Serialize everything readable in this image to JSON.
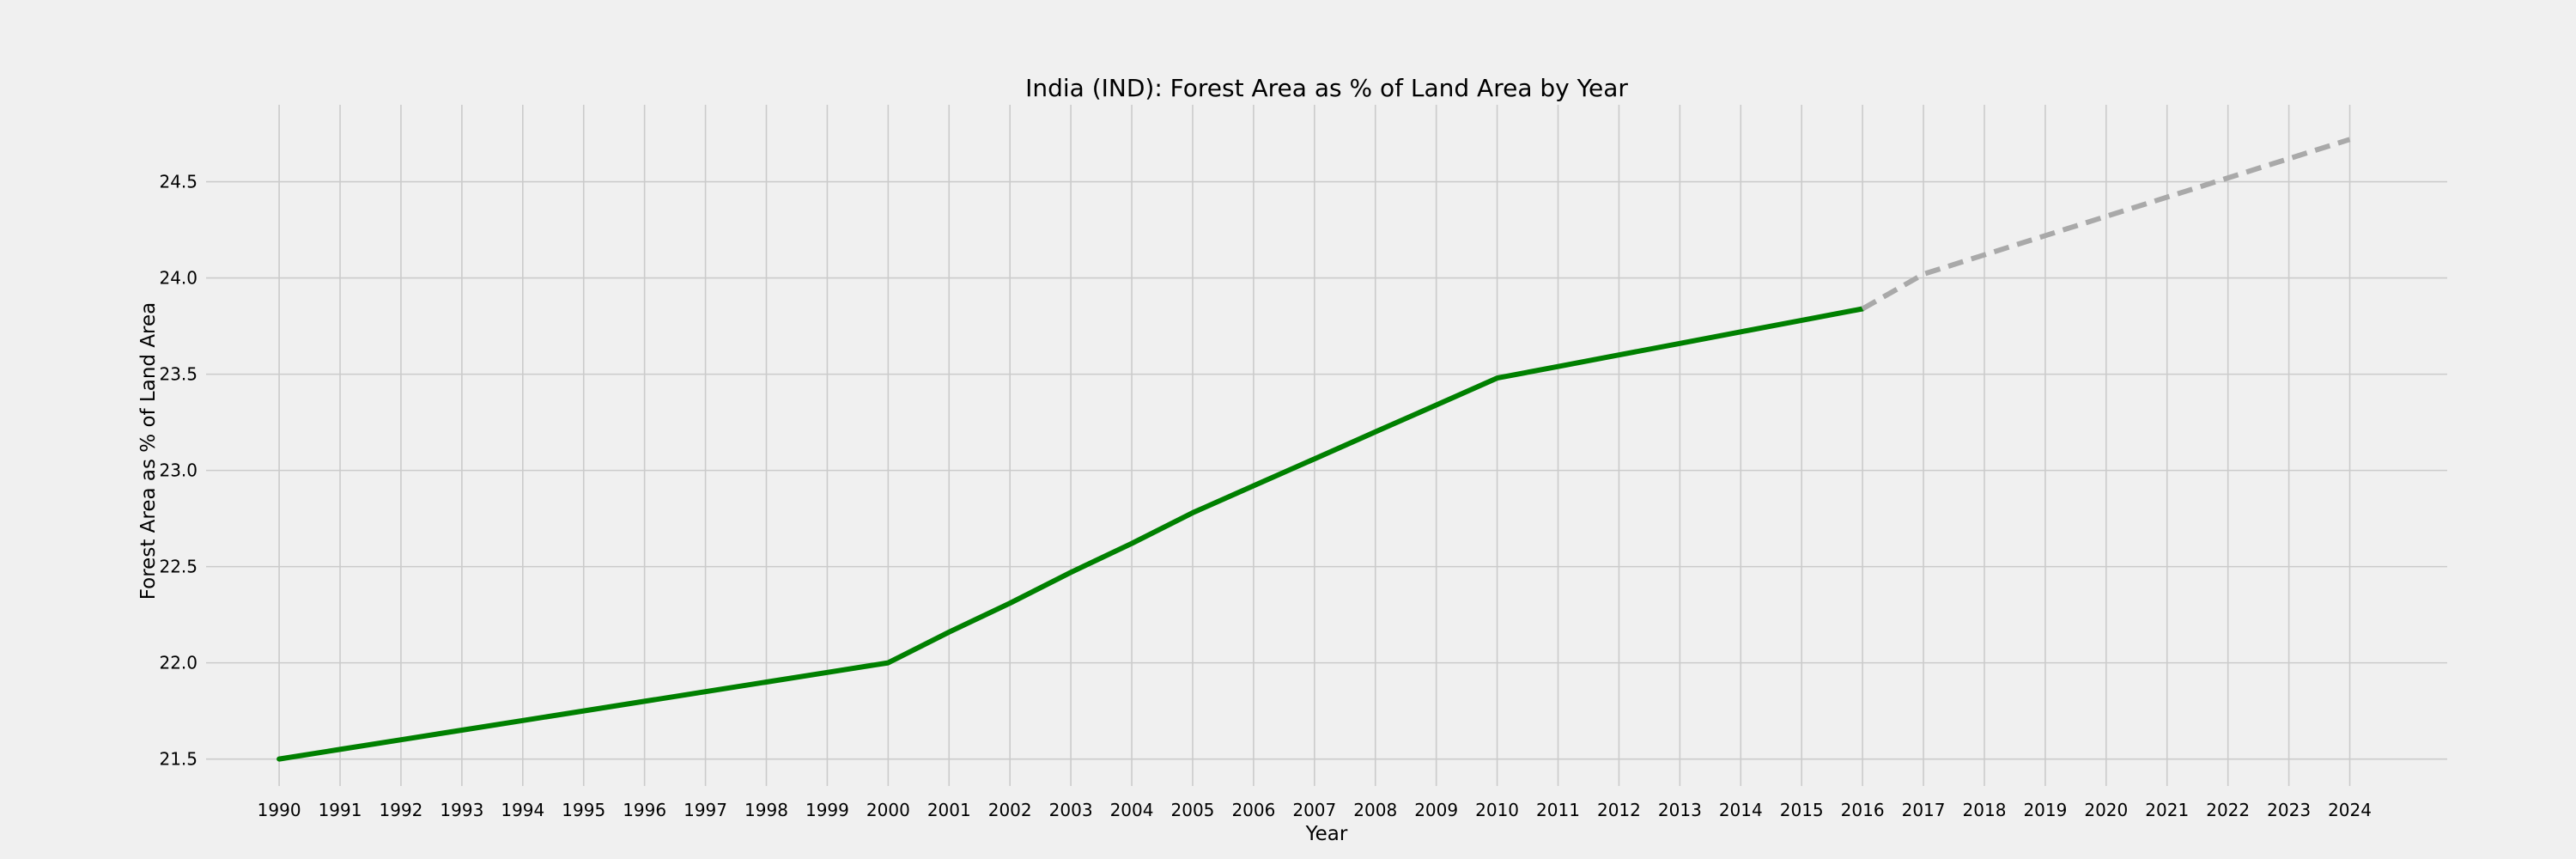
{
  "chart_data": {
    "type": "line",
    "title": "India (IND): Forest Area as % of Land Area by Year",
    "xlabel": "Year",
    "ylabel": "Forest Area as % of Land Area",
    "xlim": [
      1988.8,
      2025.6
    ],
    "ylim": [
      21.36,
      24.9
    ],
    "x_ticks": [
      "1990",
      "1991",
      "1992",
      "1993",
      "1994",
      "1995",
      "1996",
      "1997",
      "1998",
      "1999",
      "2000",
      "2001",
      "2002",
      "2003",
      "2004",
      "2005",
      "2006",
      "2007",
      "2008",
      "2009",
      "2010",
      "2011",
      "2012",
      "2013",
      "2014",
      "2015",
      "2016",
      "2017",
      "2018",
      "2019",
      "2020",
      "2021",
      "2022",
      "2023",
      "2024"
    ],
    "y_ticks": [
      "21.5",
      "22.0",
      "22.5",
      "23.0",
      "23.5",
      "24.0",
      "24.5"
    ],
    "grid": true,
    "series": [
      {
        "style": "solid",
        "color": "#008000",
        "x": [
          1990,
          1991,
          1992,
          1993,
          1994,
          1995,
          1996,
          1997,
          1998,
          1999,
          2000,
          2001,
          2002,
          2003,
          2004,
          2005,
          2006,
          2007,
          2008,
          2009,
          2010,
          2011,
          2012,
          2013,
          2014,
          2015,
          2016
        ],
        "y": [
          21.5,
          21.55,
          21.6,
          21.65,
          21.7,
          21.75,
          21.8,
          21.85,
          21.9,
          21.95,
          22.0,
          22.16,
          22.31,
          22.47,
          22.62,
          22.78,
          22.92,
          23.06,
          23.2,
          23.34,
          23.48,
          23.54,
          23.6,
          23.66,
          23.72,
          23.78,
          23.84
        ]
      },
      {
        "style": "dashed",
        "color": "#a9a9a9",
        "x": [
          2016,
          2017,
          2018,
          2019,
          2020,
          2021,
          2022,
          2023,
          2024
        ],
        "y": [
          23.84,
          24.02,
          24.12,
          24.22,
          24.32,
          24.42,
          24.52,
          24.62,
          24.72
        ]
      }
    ]
  }
}
